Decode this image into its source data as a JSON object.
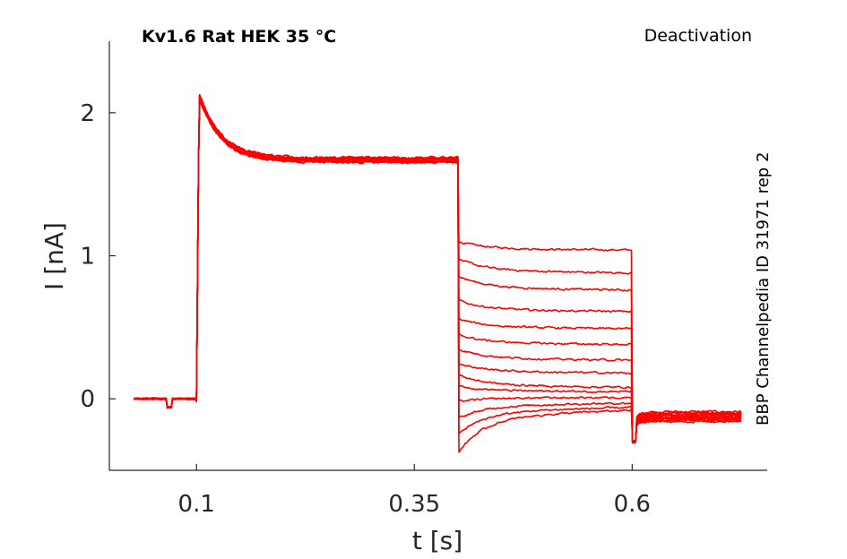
{
  "chart_data": {
    "type": "line",
    "title": "Kv1.6  Rat  HEK  35 °C",
    "protocol_label": "Deactivation",
    "side_label": "BBP Channelpedia ID 31971 rep 2",
    "xlabel": "t [s]",
    "ylabel": "I [nA]",
    "xlim": [
      -0.0,
      0.755
    ],
    "ylim": [
      -0.5,
      2.5
    ],
    "x_ticks": [
      0.1,
      0.35,
      0.6
    ],
    "x_tick_labels": [
      "0.1",
      "0.35",
      "0.6"
    ],
    "y_ticks": [
      0,
      1,
      2
    ],
    "y_tick_labels": [
      "0",
      "1",
      "2"
    ],
    "grid": false,
    "legend": "none",
    "color": "#ff0000",
    "protocol": {
      "baseline_end": 0.1,
      "activation_end": 0.4,
      "tail_end": 0.6,
      "record_end": 0.726
    },
    "activation": {
      "peak": 2.18,
      "steady": 1.67,
      "tau_s": 0.025
    },
    "series": [
      {
        "tail_start": 1.1,
        "tail_end": 1.04,
        "after": -0.09
      },
      {
        "tail_start": 0.98,
        "tail_end": 0.88,
        "after": -0.1
      },
      {
        "tail_start": 0.86,
        "tail_end": 0.76,
        "after": -0.1
      },
      {
        "tail_start": 0.69,
        "tail_end": 0.61,
        "after": -0.11
      },
      {
        "tail_start": 0.56,
        "tail_end": 0.49,
        "after": -0.11
      },
      {
        "tail_start": 0.45,
        "tail_end": 0.38,
        "after": -0.12
      },
      {
        "tail_start": 0.35,
        "tail_end": 0.27,
        "after": -0.12
      },
      {
        "tail_start": 0.25,
        "tail_end": 0.18,
        "after": -0.13
      },
      {
        "tail_start": 0.17,
        "tail_end": 0.08,
        "after": -0.13
      },
      {
        "tail_start": 0.09,
        "tail_end": 0.05,
        "after": -0.14
      },
      {
        "tail_start": -0.02,
        "tail_end": 0.01,
        "after": -0.14
      },
      {
        "tail_start": -0.14,
        "tail_end": -0.03,
        "after": -0.15
      },
      {
        "tail_start": -0.25,
        "tail_end": -0.06,
        "after": -0.15
      },
      {
        "tail_start": -0.38,
        "tail_end": -0.08,
        "after": -0.16
      }
    ]
  }
}
